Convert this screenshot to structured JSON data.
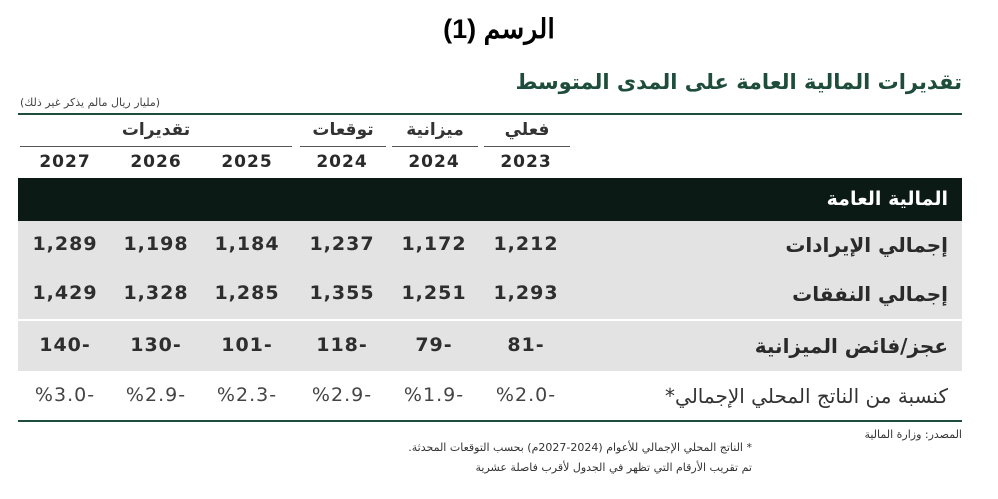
{
  "figure_title": "الرسم (1)",
  "table_title": "تقديرات المالية العامة على المدى المتوسط",
  "unit_note": "(مليار ريال مالم يذكر غير ذلك)",
  "group_headers": {
    "actual": "فعلي",
    "budget": "ميزانية",
    "forecast": "توقعات",
    "estimates": "تقديرات"
  },
  "years": [
    "2027",
    "2026",
    "2025",
    "2024",
    "2024",
    "2023"
  ],
  "section_header": "المالية العامة",
  "rows": [
    {
      "label": "إجمالي الإيرادات",
      "values": [
        "1,289",
        "1,198",
        "1,184",
        "1,237",
        "1,172",
        "1,212"
      ]
    },
    {
      "label": "إجمالي النفقات",
      "values": [
        "1,429",
        "1,328",
        "1,285",
        "1,355",
        "1,251",
        "1,293"
      ]
    },
    {
      "label": "عجز/فائض الميزانية",
      "values": [
        "140-",
        "130-",
        "101-",
        "118-",
        "79-",
        "81-"
      ]
    },
    {
      "label": "كنسبة من الناتج المحلي الإجمالي*",
      "values": [
        "%3.0-",
        "%2.9-",
        "%2.3-",
        "%2.9-",
        "%1.9-",
        "%2.0-"
      ]
    }
  ],
  "footnotes": {
    "source": "المصدر: وزارة المالية",
    "note1": "* الناتج المحلي الإجمالي للأعوام (2024-2027م) بحسب التوقعات المحدثة.",
    "note2": "تم تقريب الأرقام التي تظهر في الجدول لأقرب فاصلة عشرية"
  }
}
